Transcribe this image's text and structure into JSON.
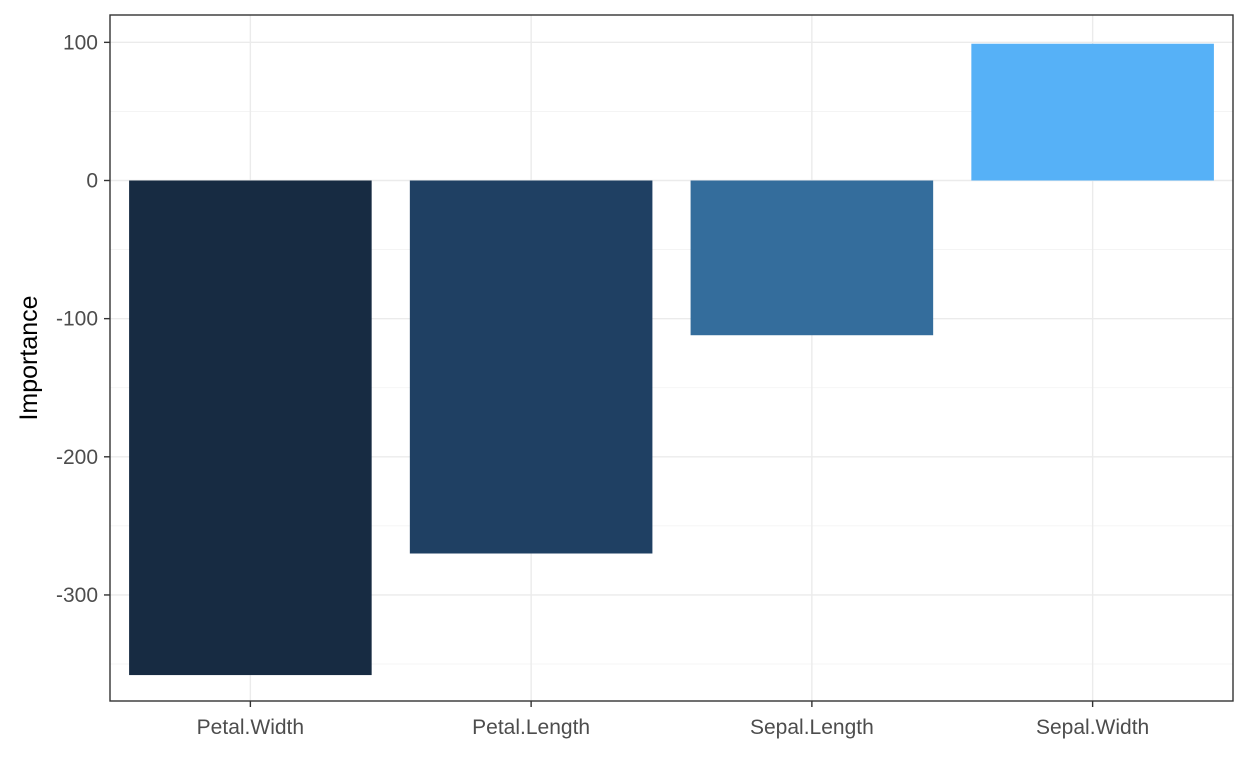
{
  "chart_data": {
    "type": "bar",
    "title": "",
    "xlabel": "",
    "ylabel": "Importance",
    "categories": [
      "Petal.Width",
      "Petal.Length",
      "Sepal.Length",
      "Sepal.Width"
    ],
    "values": [
      -358,
      -270,
      -112,
      99
    ],
    "colors": [
      "#172b42",
      "#1f4063",
      "#346d9c",
      "#56b1f7"
    ],
    "ylim": [
      -375,
      120
    ],
    "yticks": [
      100,
      0,
      -100,
      -200,
      -300
    ],
    "grid": true,
    "legend": "none"
  }
}
